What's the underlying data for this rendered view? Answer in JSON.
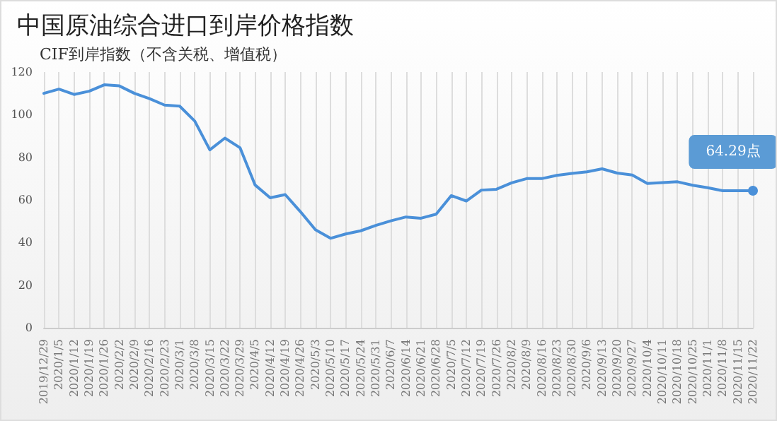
{
  "chart_data": {
    "type": "line",
    "title": "中国原油综合进口到岸价格指数",
    "subtitle": "CIF到岸指数（不含关税、增值税）",
    "categories": [
      "2019/12/29",
      "2020/1/5",
      "2020/1/12",
      "2020/1/19",
      "2020/1/26",
      "2020/2/2",
      "2020/2/9",
      "2020/2/16",
      "2020/2/23",
      "2020/3/1",
      "2020/3/8",
      "2020/3/15",
      "2020/3/22",
      "2020/3/29",
      "2020/4/5",
      "2020/4/12",
      "2020/4/19",
      "2020/4/26",
      "2020/5/3",
      "2020/5/10",
      "2020/5/17",
      "2020/5/24",
      "2020/5/31",
      "2020/6/7",
      "2020/6/14",
      "2020/6/21",
      "2020/6/28",
      "2020/7/5",
      "2020/7/12",
      "2020/7/19",
      "2020/7/26",
      "2020/8/2",
      "2020/8/9",
      "2020/8/16",
      "2020/8/23",
      "2020/8/30",
      "2020/9/6",
      "2020/9/13",
      "2020/9/20",
      "2020/9/27",
      "2020/10/4",
      "2020/10/11",
      "2020/10/18",
      "2020/10/25",
      "2020/11/1",
      "2020/11/8",
      "2020/11/15",
      "2020/11/22"
    ],
    "series": [
      {
        "color": "#4a90d9",
        "values": [
          110,
          112,
          109.5,
          111,
          114,
          113.5,
          110,
          107.5,
          104.5,
          104,
          97,
          83.5,
          89,
          84.5,
          67,
          61,
          62.5,
          54.5,
          46,
          42,
          44,
          45.5,
          48,
          50.2,
          52,
          51.4,
          53.3,
          62,
          59.5,
          64.6,
          65,
          68,
          70,
          70,
          71.5,
          72.4,
          73.2,
          74.6,
          72.6,
          71.7,
          67.7,
          68.1,
          68.5,
          66.9,
          65.7,
          64.3,
          64.3,
          64.29
        ],
        "value_labels": [
          null,
          null,
          null,
          null,
          null,
          null,
          null,
          null,
          null,
          null,
          null,
          null,
          null,
          null,
          null,
          null,
          null,
          null,
          null,
          null,
          null,
          null,
          null,
          null,
          null,
          null,
          null,
          null,
          null,
          null,
          null,
          null,
          null,
          null,
          null,
          null,
          null,
          null,
          null,
          null,
          null,
          null,
          null,
          null,
          null,
          null,
          null,
          "64.29点"
        ]
      }
    ],
    "ylim": [
      0,
      120
    ],
    "yticks": [
      0,
      20,
      40,
      60,
      80,
      100,
      120
    ],
    "grid": "x",
    "marker": "none",
    "line_style": "solid"
  }
}
